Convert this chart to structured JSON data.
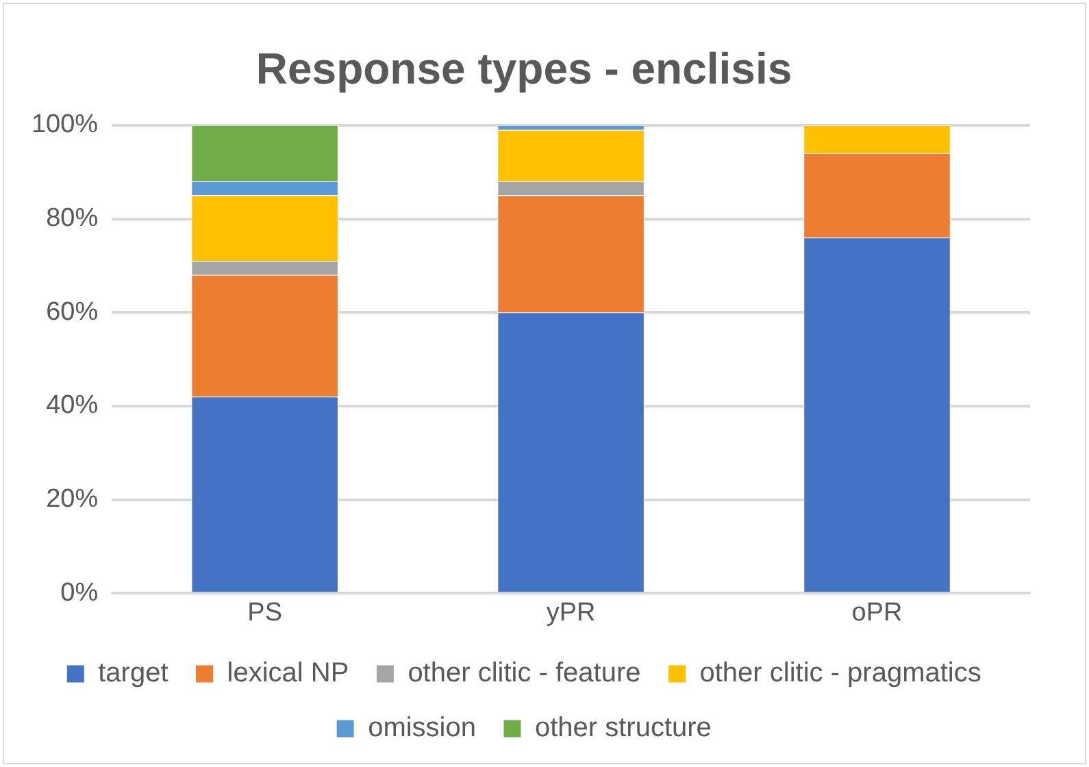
{
  "chart_data": {
    "type": "bar",
    "stacked": true,
    "title": "Response types - enclisis",
    "categories": [
      "PS",
      "yPR",
      "oPR"
    ],
    "series": [
      {
        "name": "target",
        "color": "#4472c4",
        "values": [
          42,
          60,
          76
        ]
      },
      {
        "name": "lexical NP",
        "color": "#ed7d31",
        "values": [
          26,
          25,
          18
        ]
      },
      {
        "name": "other clitic - feature",
        "color": "#a5a5a5",
        "values": [
          3,
          3,
          0
        ]
      },
      {
        "name": "other clitic - pragmatics",
        "color": "#ffc000",
        "values": [
          14,
          11,
          6
        ]
      },
      {
        "name": "omission",
        "color": "#5b9bd5",
        "values": [
          3,
          1,
          0
        ]
      },
      {
        "name": "other structure",
        "color": "#70ad47",
        "values": [
          12,
          0,
          0
        ]
      }
    ],
    "ylim": [
      0,
      100
    ],
    "yticks": [
      {
        "value": 0,
        "label": "0%"
      },
      {
        "value": 20,
        "label": "20%"
      },
      {
        "value": 40,
        "label": "40%"
      },
      {
        "value": 60,
        "label": "60%"
      },
      {
        "value": 80,
        "label": "80%"
      },
      {
        "value": 100,
        "label": "100%"
      }
    ],
    "grid": "y",
    "legend": "bottom"
  }
}
